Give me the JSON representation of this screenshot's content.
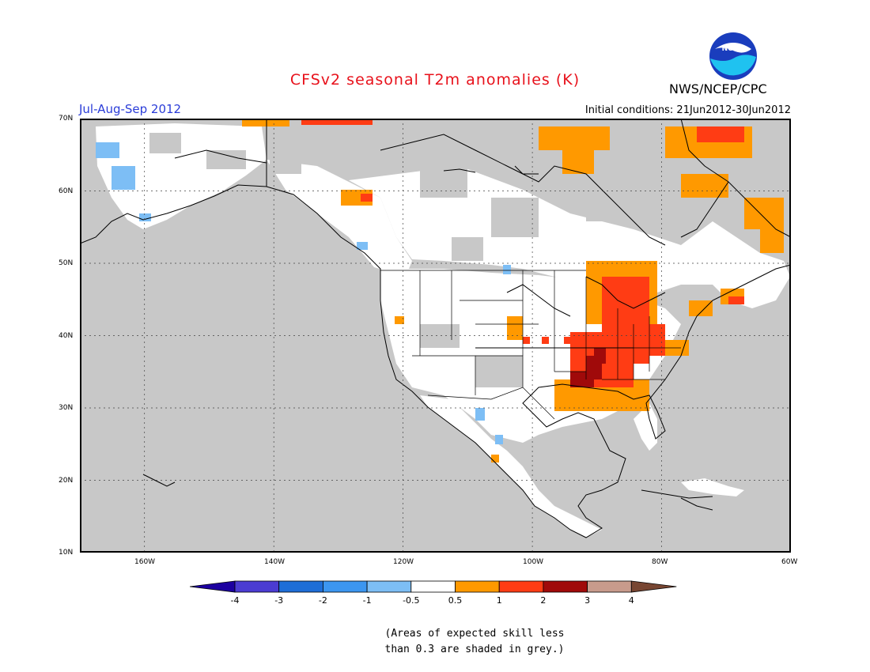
{
  "header": {
    "title": "CFSv2 seasonal T2m anomalies (K)",
    "agency": "NWS/NCEP/CPC",
    "logo_text": "NOAA",
    "period": "Jul-Aug-Sep 2012",
    "initial_conditions": "Initial conditions: 21Jun2012-30Jun2012"
  },
  "map": {
    "region": "North America",
    "lat_range": [
      10,
      70
    ],
    "lon_range": [
      -170,
      -60
    ],
    "lat_labels": [
      "70N",
      "60N",
      "50N",
      "40N",
      "30N",
      "20N",
      "10N"
    ],
    "lon_labels": [
      "160W",
      "140W",
      "120W",
      "100W",
      "80W",
      "60W"
    ],
    "colors": {
      "ocean_low_skill": "#c8c8c8",
      "land": "#ffffff",
      "coastline": "#000000"
    }
  },
  "legend": {
    "ticks": [
      "-4",
      "-3",
      "-2",
      "-1",
      "-0.5",
      "0.5",
      "1",
      "2",
      "3",
      "4"
    ],
    "colors": [
      "#1c00a0",
      "#4b3cd2",
      "#1e6ed7",
      "#3c96f0",
      "#7dbef5",
      "#ffffff",
      "#ff9900",
      "#ff3c14",
      "#a00a0a",
      "#c89b8c",
      "#784632"
    ]
  },
  "note": {
    "line1": "(Areas of expected skill less",
    "line2": "than 0.3 are shaded in grey.)"
  }
}
